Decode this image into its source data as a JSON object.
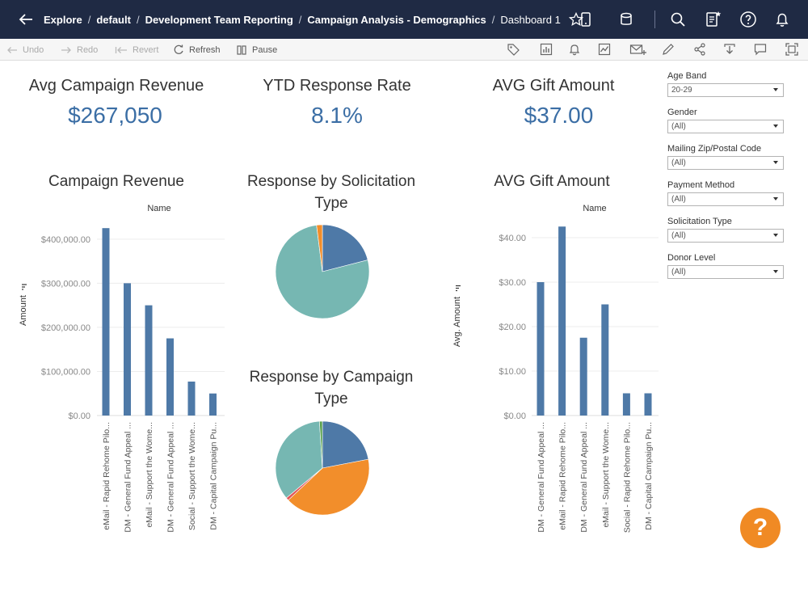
{
  "breadcrumb": {
    "items": [
      "Explore",
      "default",
      "Development Team Reporting",
      "Campaign Analysis - Demographics"
    ],
    "current": "Dashboard 1"
  },
  "topbar_icons": [
    "mobile-icon",
    "database-icon",
    "search-icon",
    "watch-icon",
    "help-icon",
    "bell-icon"
  ],
  "toolbar": {
    "undo": "Undo",
    "redo": "Redo",
    "revert": "Revert",
    "refresh": "Refresh",
    "pause": "Pause",
    "right_icons": [
      "tag-icon",
      "data-guide-icon",
      "alert-icon",
      "metric-icon",
      "subscribe-icon",
      "edit-icon",
      "share-icon",
      "download-icon",
      "comment-icon",
      "fullscreen-icon"
    ]
  },
  "kpis": [
    {
      "title": "Avg Campaign Revenue",
      "value": "$267,050"
    },
    {
      "title": "YTD Response Rate",
      "value": "8.1%"
    },
    {
      "title": "AVG Gift Amount",
      "value": "$37.00"
    }
  ],
  "colors": {
    "bar": "#4e79a7",
    "teal": "#76b7b2",
    "orange": "#f28e2b",
    "green": "#59a14f",
    "red": "#e15759",
    "accent": "#f08a24"
  },
  "chart_data": [
    {
      "type": "bar",
      "title": "Campaign Revenue",
      "header": "Name",
      "ylabel": "Amount",
      "ylim": [
        0,
        440000
      ],
      "yticks": [
        0,
        100000,
        200000,
        300000,
        400000
      ],
      "ytick_labels": [
        "$0.00",
        "$100,000.00",
        "$200,000.00",
        "$300,000.00",
        "$400,000.00"
      ],
      "categories": [
        "eMail - Rapid Rehome Pilo...",
        "DM - General Fund Appeal ...",
        "eMail - Support the Wome...",
        "DM - General Fund Appeal ...",
        "Social - Support the Wome...",
        "DM - Capital Campaign Pu..."
      ],
      "values": [
        425000,
        300000,
        250000,
        175000,
        77000,
        50000
      ]
    },
    {
      "type": "pie",
      "title": "Response by Solicitation Type",
      "slices": [
        {
          "value": 21,
          "color": "#4e79a7"
        },
        {
          "value": 77,
          "color": "#76b7b2"
        },
        {
          "value": 2,
          "color": "#f28e2b"
        }
      ]
    },
    {
      "type": "pie",
      "title": "Response by Campaign Type",
      "slices": [
        {
          "value": 22,
          "color": "#4e79a7"
        },
        {
          "value": 41,
          "color": "#f28e2b"
        },
        {
          "value": 1,
          "color": "#e15759"
        },
        {
          "value": 35,
          "color": "#76b7b2"
        },
        {
          "value": 1,
          "color": "#59a14f"
        }
      ]
    },
    {
      "type": "bar",
      "title": "AVG Gift Amount",
      "header": "Name",
      "ylabel": "Avg. Amount",
      "ylim": [
        0,
        44
      ],
      "yticks": [
        0,
        10,
        20,
        30,
        40
      ],
      "ytick_labels": [
        "$0.00",
        "$10.00",
        "$20.00",
        "$30.00",
        "$40.00"
      ],
      "categories": [
        "DM - General Fund Appeal ...",
        "eMail - Rapid Rehome Pilo...",
        "DM - General Fund Appeal ...",
        "eMail - Support the Wome...",
        "Social - Rapid Rehome Pilo...",
        "DM - Capital Campaign Pu..."
      ],
      "values": [
        30,
        42.5,
        17.5,
        25,
        5,
        5
      ]
    }
  ],
  "filters": [
    {
      "label": "Age Band",
      "value": "20-29"
    },
    {
      "label": "Gender",
      "value": "(All)"
    },
    {
      "label": "Mailing Zip/Postal Code",
      "value": "(All)"
    },
    {
      "label": "Payment Method",
      "value": "(All)"
    },
    {
      "label": "Solicitation Type",
      "value": "(All)"
    },
    {
      "label": "Donor Level",
      "value": "(All)"
    }
  ],
  "help_button": "?"
}
